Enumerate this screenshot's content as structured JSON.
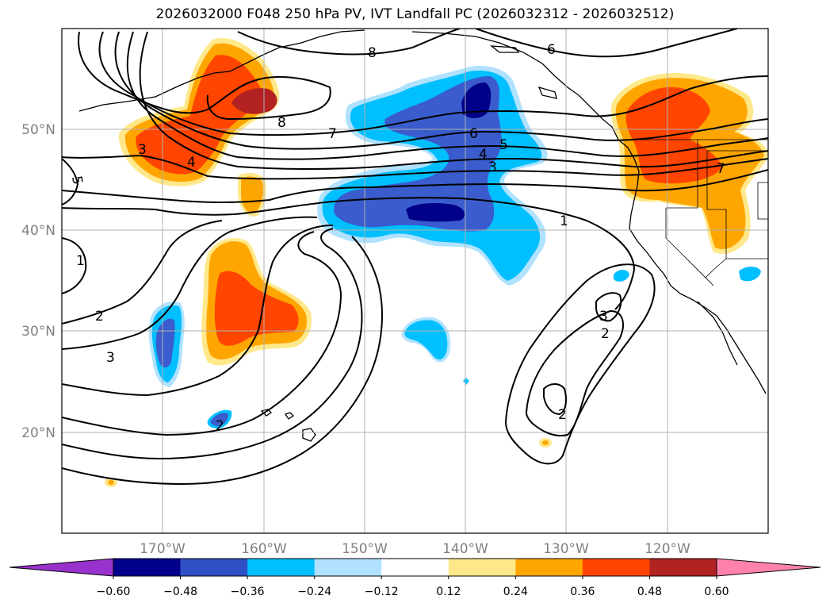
{
  "title": "2026032000 F048 250 hPa PV, IVT Landfall PC (2026032312 - 2026032512)",
  "map": {
    "lat_labels": [
      "50°N",
      "40°N",
      "30°N",
      "20°N"
    ],
    "lon_labels": [
      "170°W",
      "160°W",
      "150°W",
      "140°W",
      "130°W",
      "120°W"
    ],
    "contour_labels": [
      "8",
      "8",
      "7",
      "6",
      "6",
      "5",
      "5",
      "4",
      "4",
      "3",
      "3",
      "3",
      "3",
      "2",
      "2",
      "2",
      "1",
      "1",
      "7"
    ]
  },
  "colorbar": {
    "ticks": [
      "−0.60",
      "−0.48",
      "−0.36",
      "−0.24",
      "−0.12",
      "0.12",
      "0.24",
      "0.36",
      "0.48",
      "0.60"
    ],
    "colors": [
      "#9932cc",
      "#00008b",
      "#3050c8",
      "#00bfff",
      "#b0e2ff",
      "#ffffff",
      "#ffe88a",
      "#ffa500",
      "#ff4500",
      "#b22222",
      "#ff82ab"
    ]
  },
  "colors": {
    "deep_blue": "#00008b",
    "blue": "#3a5ccc",
    "cyan": "#00bfff",
    "light_cyan": "#b0e2ff",
    "yellow": "#ffe88a",
    "orange": "#ffa500",
    "red": "#ff4500",
    "dark_red": "#b22222"
  }
}
